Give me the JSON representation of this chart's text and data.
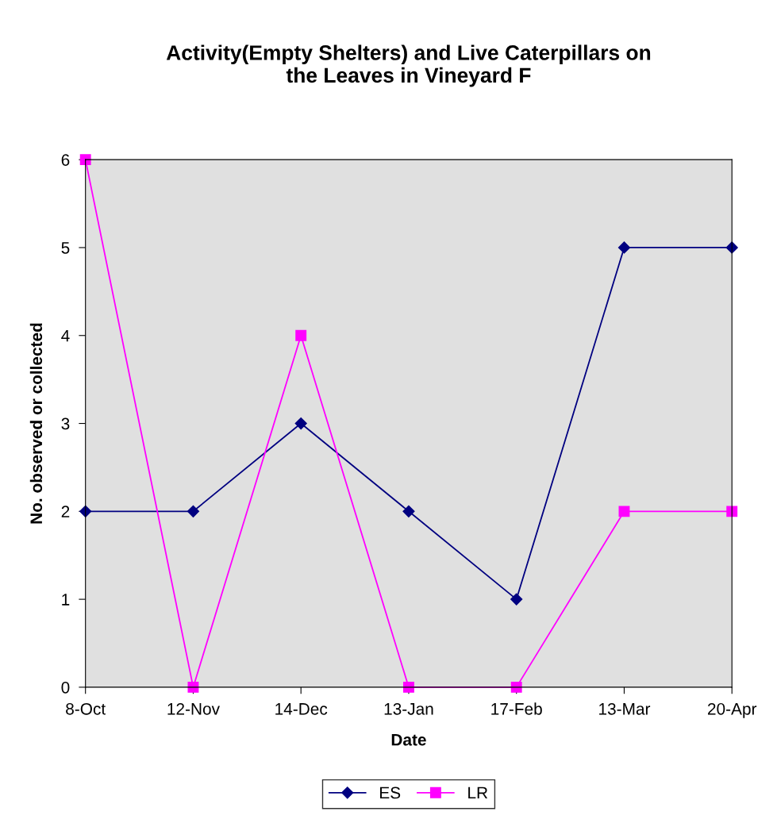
{
  "chart_data": {
    "type": "line",
    "title": "Activity(Empty Shelters) and Live Caterpillars on\nthe Leaves in Vineyard F",
    "xlabel": "Date",
    "ylabel": "No. observed or collected",
    "categories": [
      "8-Oct",
      "12-Nov",
      "14-Dec",
      "13-Jan",
      "17-Feb",
      "13-Mar",
      "20-Apr"
    ],
    "series": [
      {
        "name": "ES",
        "color": "#000080",
        "marker": "diamond",
        "values": [
          2,
          2,
          3,
          2,
          1,
          5,
          5
        ]
      },
      {
        "name": "LR",
        "color": "#ff00ff",
        "marker": "square",
        "values": [
          6,
          0,
          4,
          0,
          0,
          2,
          2
        ]
      }
    ],
    "ylim": [
      0,
      6
    ],
    "yticks": [
      0,
      1,
      2,
      3,
      4,
      5,
      6
    ],
    "grid": false,
    "legend": "bottom",
    "line_style": "solid"
  }
}
